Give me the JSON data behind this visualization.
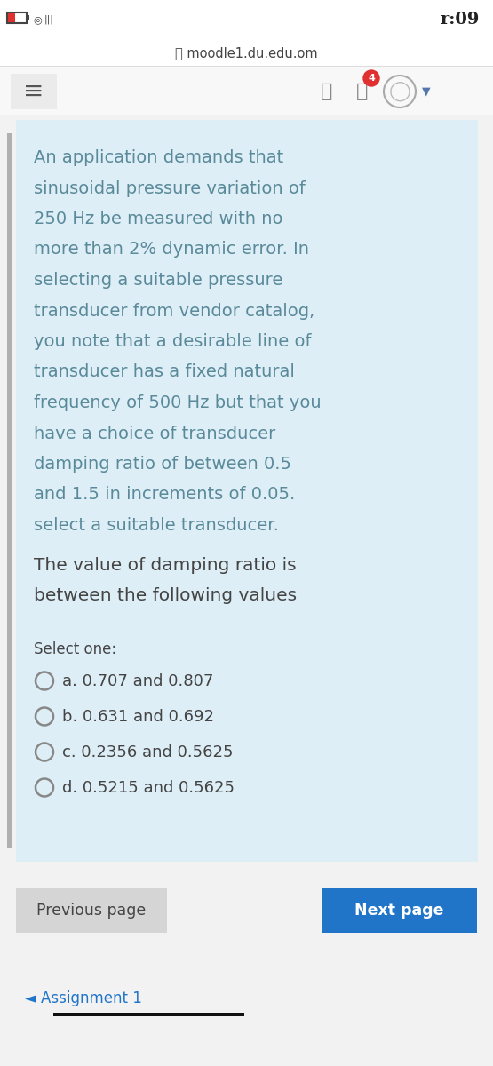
{
  "bg_color": "#f2f2f2",
  "card_color": "#ddeef6",
  "white_bar": "#ffffff",
  "status_time": "r:09",
  "url_text": "moodle1.du.edu.om",
  "question_text": "An application demands that\nsinusoidal pressure variation of\n250 Hz be measured with no\nmore than 2% dynamic error. In\nselecting a suitable pressure\ntransducer from vendor catalog,\nyou note that a desirable line of\ntransducer has a fixed natural\nfrequency of 500 Hz but that you\nhave a choice of transducer\ndamping ratio of between 0.5\nand 1.5 in increments of 0.05.\nselect a suitable transducer.",
  "sub_question": "The value of damping ratio is\nbetween the following values",
  "select_label": "Select one:",
  "options": [
    "a. 0.707 and 0.807",
    "b. 0.631 and 0.692",
    "c. 0.2356 and 0.5625",
    "d. 0.5215 and 0.5625"
  ],
  "prev_btn_text": "Previous page",
  "next_btn_text": "Next page",
  "prev_btn_color": "#d5d5d5",
  "next_btn_color": "#2175c8",
  "assignment_text": "◄ Assignment 1",
  "text_color": "#5a8a9a",
  "dark_text": "#444444",
  "option_text_color": "#444444",
  "gray_border_color": "#b0b0b0"
}
